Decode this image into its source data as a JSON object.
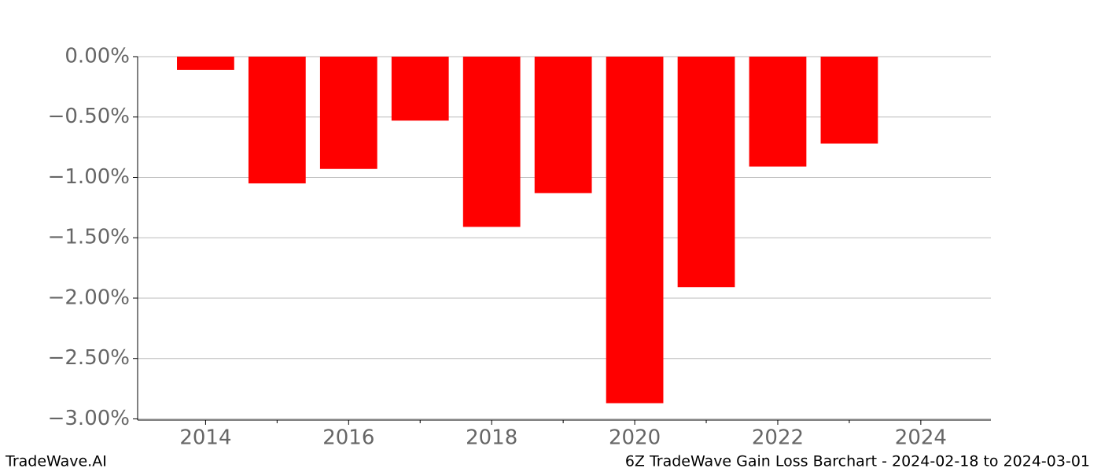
{
  "chart_data": {
    "type": "bar",
    "x": [
      2014,
      2015,
      2016,
      2017,
      2018,
      2019,
      2020,
      2021,
      2022,
      2023
    ],
    "values": [
      -0.11,
      -1.05,
      -0.93,
      -0.53,
      -1.41,
      -1.13,
      -2.87,
      -1.91,
      -0.91,
      -0.72
    ],
    "color": "#ff0000",
    "xlim": [
      2013.05,
      2024.98
    ],
    "xticks": [
      2014,
      2016,
      2018,
      2020,
      2022,
      2024
    ],
    "xminorticks": [
      2015,
      2017,
      2019,
      2021,
      2023
    ],
    "ylim": [
      -3.01,
      0
    ],
    "yticks": [
      {
        "value": 0,
        "label": "0.00%"
      },
      {
        "value": -0.5,
        "label": "−0.50%"
      },
      {
        "value": -1,
        "label": "−1.00%"
      },
      {
        "value": -1.5,
        "label": "−1.50%"
      },
      {
        "value": -2,
        "label": "−2.00%"
      },
      {
        "value": -2.5,
        "label": "−2.50%"
      },
      {
        "value": -3,
        "label": "−3.00%"
      }
    ],
    "grid": true,
    "footer_left": "TradeWave.AI",
    "footer_right": "6Z TradeWave Gain Loss Barchart - 2024-02-18 to 2024-03-01"
  }
}
